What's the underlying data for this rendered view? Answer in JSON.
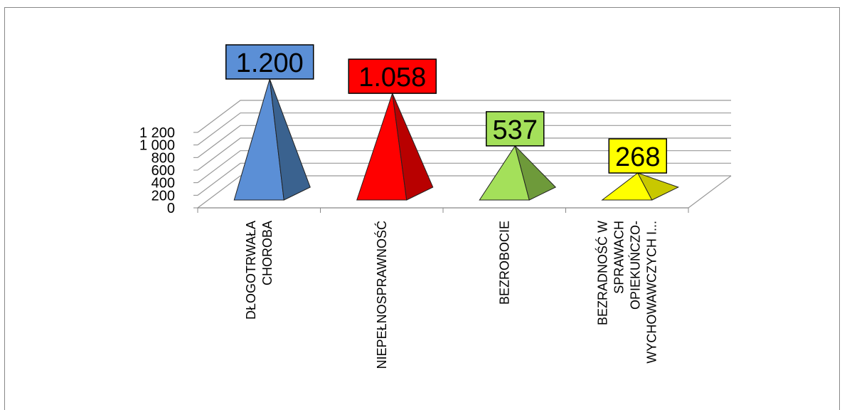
{
  "chart_data": {
    "type": "bar",
    "style": "3d-pyramid",
    "categories": [
      [
        "DŁOGOTRWAŁA",
        "CHOROBA"
      ],
      [
        "NIEPEŁNOSPRAWNOŚĆ"
      ],
      [
        "BEZROBOCIE"
      ],
      [
        "BEZRADNOŚĆ W",
        "SPRAWACH",
        "OPIEKUŃCZO-",
        "WYCHOWAWCZYCH I..."
      ]
    ],
    "values": [
      1200,
      1058,
      537,
      268
    ],
    "data_labels": [
      "1.200",
      "1.058",
      "537",
      "268"
    ],
    "colors": [
      "#5b8fd6",
      "#ff0000",
      "#a4e05a",
      "#ffff00"
    ],
    "side_colors": [
      "#3a628f",
      "#b80000",
      "#6e9a3a",
      "#c8c800"
    ],
    "yticks": [
      0,
      200,
      400,
      600,
      800,
      1000,
      1200
    ],
    "ytick_labels": [
      "0",
      "200",
      "400",
      "600",
      "800",
      "1 000",
      "1 200"
    ],
    "ylim": [
      0,
      1200
    ],
    "grid": true,
    "legend": "none"
  }
}
